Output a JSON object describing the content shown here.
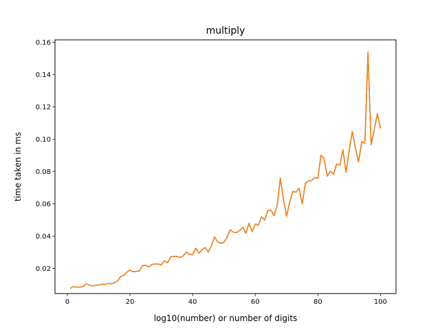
{
  "chart_data": {
    "type": "line",
    "title": "multiply",
    "xlabel": "log10(number) or number of digits",
    "ylabel": "time taken in ms",
    "xlim": [
      -3.95,
      104.95
    ],
    "ylim": [
      0.0045,
      0.1615
    ],
    "x_ticks": [
      0,
      20,
      40,
      60,
      80,
      100
    ],
    "y_ticks": [
      0.02,
      0.04,
      0.06,
      0.08,
      0.1,
      0.12,
      0.14,
      0.16
    ],
    "x_tick_labels": [
      "0",
      "20",
      "40",
      "60",
      "80",
      "100"
    ],
    "y_tick_labels": [
      "0.02",
      "0.04",
      "0.06",
      "0.08",
      "0.10",
      "0.12",
      "0.14",
      "0.16"
    ],
    "grid": false,
    "series": [
      {
        "color": "#1f77b4",
        "x": [
          1,
          2,
          3,
          4,
          5,
          6,
          7,
          8,
          9,
          10,
          11,
          12,
          13,
          14,
          15,
          16,
          17,
          18,
          19,
          20,
          21,
          22,
          23,
          24,
          25,
          26,
          27,
          28,
          29,
          30,
          31,
          32,
          33,
          34,
          35,
          36,
          37,
          38,
          39,
          40,
          41,
          42,
          43,
          44,
          45,
          46,
          47,
          48,
          49,
          50,
          51,
          52,
          53,
          54,
          55,
          56,
          57,
          58,
          59,
          60,
          61,
          62,
          63,
          64,
          65,
          66,
          67,
          68,
          69,
          70,
          71,
          72,
          73,
          74,
          75,
          76,
          77,
          78,
          79,
          80,
          81,
          82,
          83,
          84,
          85,
          86,
          87,
          88,
          89,
          90,
          91,
          92,
          93,
          94,
          95,
          96,
          97,
          98,
          99,
          100
        ],
        "values": [
          0.0078,
          0.0088,
          0.0085,
          0.0085,
          0.0088,
          0.0105,
          0.0098,
          0.0092,
          0.0095,
          0.0098,
          0.0103,
          0.0102,
          0.0108,
          0.0105,
          0.0112,
          0.0122,
          0.015,
          0.0158,
          0.0178,
          0.019,
          0.018,
          0.0182,
          0.0185,
          0.0218,
          0.022,
          0.021,
          0.0225,
          0.0228,
          0.0228,
          0.0222,
          0.0248,
          0.0235,
          0.0272,
          0.0275,
          0.0275,
          0.0268,
          0.0278,
          0.0302,
          0.0288,
          0.0285,
          0.0325,
          0.0295,
          0.0315,
          0.033,
          0.0302,
          0.034,
          0.0395,
          0.0365,
          0.0355,
          0.0362,
          0.0392,
          0.044,
          0.0425,
          0.0422,
          0.0435,
          0.0455,
          0.0418,
          0.048,
          0.0428,
          0.0475,
          0.0468,
          0.052,
          0.05,
          0.056,
          0.0562,
          0.0528,
          0.059,
          0.076,
          0.063,
          0.0522,
          0.0612,
          0.0678,
          0.0672,
          0.0698,
          0.06,
          0.0728,
          0.0742,
          0.0745,
          0.0762,
          0.0758,
          0.0902,
          0.0878,
          0.0772,
          0.0802,
          0.0782,
          0.0848,
          0.0838,
          0.0935,
          0.0795,
          0.093,
          0.1048,
          0.0942,
          0.086,
          0.0985,
          0.0975,
          0.154,
          0.0965,
          0.106,
          0.1158,
          0.107
        ]
      },
      {
        "color": "#ff7f0e",
        "x": [
          1,
          2,
          3,
          4,
          5,
          6,
          7,
          8,
          9,
          10,
          11,
          12,
          13,
          14,
          15,
          16,
          17,
          18,
          19,
          20,
          21,
          22,
          23,
          24,
          25,
          26,
          27,
          28,
          29,
          30,
          31,
          32,
          33,
          34,
          35,
          36,
          37,
          38,
          39,
          40,
          41,
          42,
          43,
          44,
          45,
          46,
          47,
          48,
          49,
          50,
          51,
          52,
          53,
          54,
          55,
          56,
          57,
          58,
          59,
          60,
          61,
          62,
          63,
          64,
          65,
          66,
          67,
          68,
          69,
          70,
          71,
          72,
          73,
          74,
          75,
          76,
          77,
          78,
          79,
          80,
          81,
          82,
          83,
          84,
          85,
          86,
          87,
          88,
          89,
          90,
          91,
          92,
          93,
          94,
          95,
          96,
          97,
          98,
          99,
          100
        ],
        "values": [
          0.0078,
          0.0088,
          0.0085,
          0.0085,
          0.0088,
          0.0105,
          0.0098,
          0.0092,
          0.0095,
          0.0098,
          0.0103,
          0.0102,
          0.0108,
          0.0105,
          0.0112,
          0.0122,
          0.015,
          0.0158,
          0.0178,
          0.019,
          0.018,
          0.0182,
          0.0185,
          0.0218,
          0.022,
          0.021,
          0.0225,
          0.0228,
          0.0228,
          0.0222,
          0.0248,
          0.0235,
          0.0272,
          0.0275,
          0.0275,
          0.0268,
          0.0278,
          0.0302,
          0.0288,
          0.0285,
          0.0325,
          0.0295,
          0.0315,
          0.033,
          0.0302,
          0.034,
          0.0395,
          0.0365,
          0.0355,
          0.0362,
          0.0392,
          0.044,
          0.0425,
          0.0422,
          0.0435,
          0.0455,
          0.0418,
          0.048,
          0.0428,
          0.0475,
          0.0468,
          0.052,
          0.05,
          0.056,
          0.0562,
          0.0528,
          0.059,
          0.076,
          0.063,
          0.0522,
          0.0612,
          0.0678,
          0.0672,
          0.0698,
          0.06,
          0.0728,
          0.0742,
          0.0745,
          0.0762,
          0.0758,
          0.0902,
          0.0878,
          0.0772,
          0.0802,
          0.0782,
          0.0848,
          0.0838,
          0.0935,
          0.0795,
          0.093,
          0.1048,
          0.0942,
          0.086,
          0.0985,
          0.0975,
          0.154,
          0.0965,
          0.106,
          0.1158,
          0.107
        ]
      }
    ]
  }
}
